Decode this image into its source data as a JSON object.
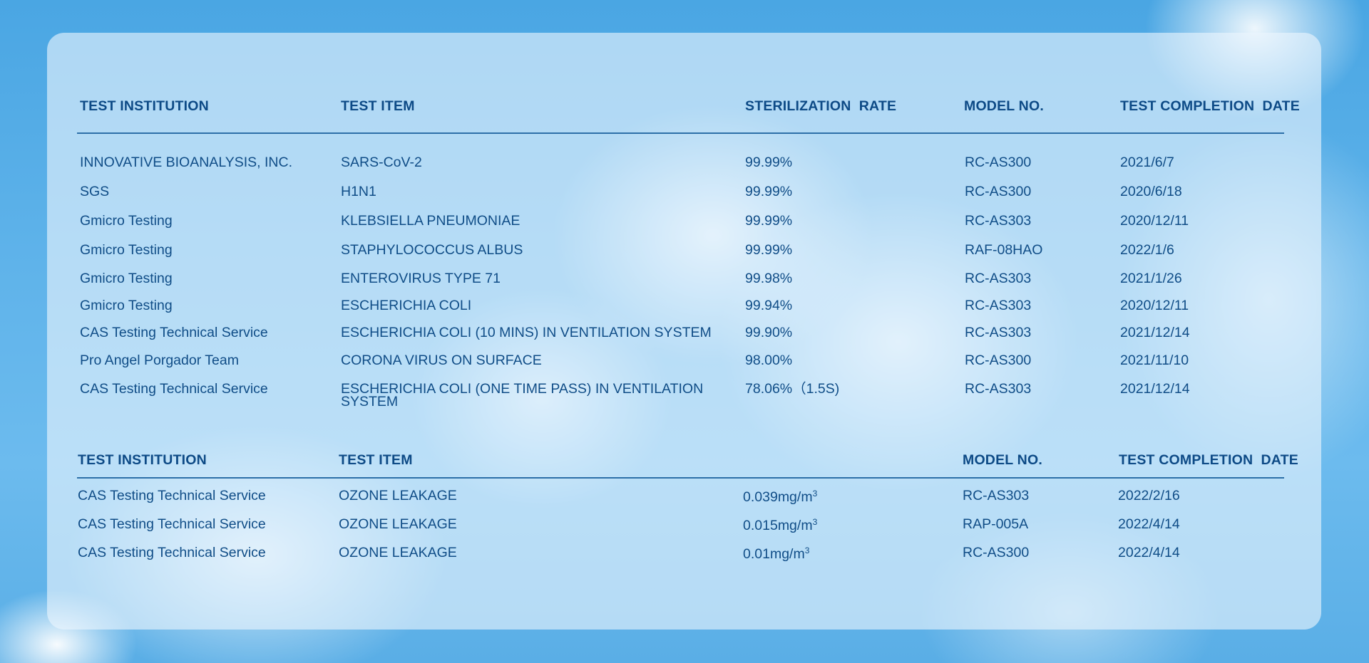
{
  "table1": {
    "headers": {
      "institution": "TEST INSTITUTION",
      "item": "TEST ITEM",
      "rate": "STERILIZATION  RATE",
      "model": "MODEL NO.",
      "date": "TEST COMPLETION  DATE"
    },
    "rows": [
      {
        "institution": "INNOVATIVE BIOANALYSIS, INC.",
        "item": "SARS-CoV-2",
        "rate": "99.99%",
        "model": "RC-AS300",
        "date": "2021/6/7"
      },
      {
        "institution": "SGS",
        "item": "H1N1",
        "rate": "99.99%",
        "model": "RC-AS300",
        "date": "2020/6/18"
      },
      {
        "institution": "Gmicro Testing",
        "item": "KLEBSIELLA PNEUMONIAE",
        "rate": "99.99%",
        "model": "RC-AS303",
        "date": "2020/12/11"
      },
      {
        "institution": "Gmicro Testing",
        "item": "STAPHYLOCOCCUS ALBUS",
        "rate": "99.99%",
        "model": "RAF-08HAO",
        "date": "2022/1/6"
      },
      {
        "institution": "Gmicro Testing",
        "item": "ENTEROVIRUS TYPE 71",
        "rate": "99.98%",
        "model": "RC-AS303",
        "date": "2021/1/26"
      },
      {
        "institution": "Gmicro Testing",
        "item": "ESCHERICHIA COLI",
        "rate": "99.94%",
        "model": "RC-AS303",
        "date": "2020/12/11"
      },
      {
        "institution": "CAS Testing Technical Service",
        "item": "ESCHERICHIA COLI (10 MINS) IN VENTILATION SYSTEM",
        "rate": "99.90%",
        "model": "RC-AS303",
        "date": "2021/12/14"
      },
      {
        "institution": "Pro Angel Porgador Team",
        "item": "CORONA VIRUS ON SURFACE",
        "rate": "98.00%",
        "model": "RC-AS300",
        "date": "2021/11/10"
      },
      {
        "institution": "CAS Testing Technical Service",
        "item": "ESCHERICHIA COLI (ONE TIME PASS) IN VENTILATION SYSTEM",
        "rate": "78.06%（1.5S)",
        "model": "RC-AS303",
        "date": "2021/12/14"
      }
    ]
  },
  "table2": {
    "headers": {
      "institution": "TEST INSTITUTION",
      "item": "TEST ITEM",
      "model": "MODEL NO.",
      "date": "TEST COMPLETION  DATE"
    },
    "unit_base": "mg/m",
    "unit_exp": "3",
    "rows": [
      {
        "institution": "CAS Testing Technical Service",
        "item": "OZONE LEAKAGE",
        "value": "0.039",
        "model": "RC-AS303",
        "date": "2022/2/16"
      },
      {
        "institution": "CAS Testing Technical Service",
        "item": "OZONE LEAKAGE",
        "value": "0.015",
        "model": "RAP-005A",
        "date": "2022/4/14"
      },
      {
        "institution": "CAS Testing Technical Service",
        "item": "OZONE LEAKAGE",
        "value": "0.01",
        "model": "RC-AS300",
        "date": "2022/4/14"
      }
    ]
  },
  "colors": {
    "text": "#104d87",
    "rule": "#2c6fa8"
  }
}
